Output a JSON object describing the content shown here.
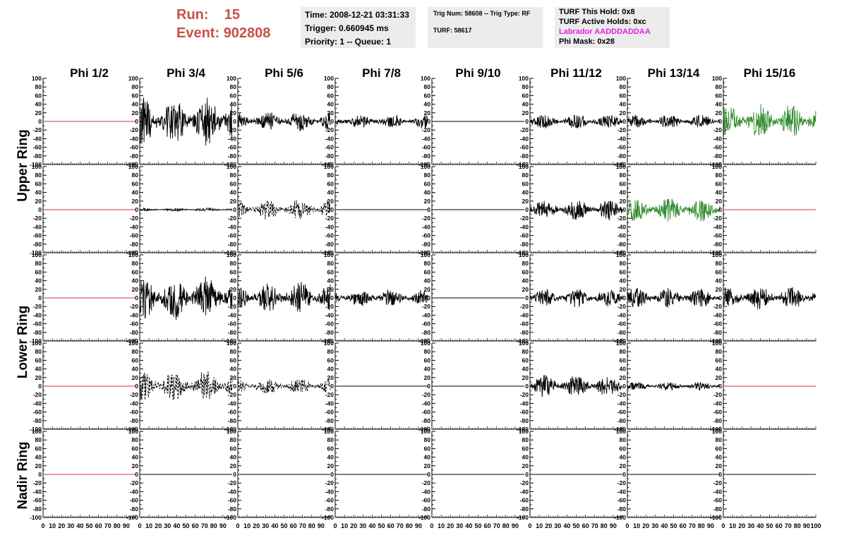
{
  "header": {
    "run_label": "Run:",
    "run_value": "15",
    "event_label": "Event:",
    "event_value": "902808",
    "time": "Time: 2008-12-21 03:31:33",
    "trigger": "Trigger: 0.660945 ms",
    "priority": "Priority: 1 -- Queue: 1",
    "trig_num": "Trig Num: 58608 -- Trig Type: RF",
    "turf": "TURF: 58617",
    "turf_hold": "TURF This Hold: 0x8",
    "turf_active": "TURF Active Holds: 0xc",
    "labrador": "Labrador AADDDADDAA",
    "phi_mask": "Phi Mask: 0x28",
    "run_color": "#c8504a",
    "labrador_color": "#e020e0"
  },
  "row_labels": [
    "Upper Ring",
    "Lower Ring",
    "Nadir Ring"
  ],
  "chart_data": {
    "type": "line",
    "columns": [
      "Phi 1/2",
      "Phi 3/4",
      "Phi 5/6",
      "Phi 7/8",
      "Phi 9/10",
      "Phi 11/12",
      "Phi 13/14",
      "Phi 15/16"
    ],
    "rows": 5,
    "ylim": [
      -100,
      100
    ],
    "xlim": [
      0,
      100
    ],
    "y_ticks": [
      100,
      80,
      60,
      40,
      20,
      0,
      -20,
      -40,
      -60,
      -80,
      -100
    ],
    "x_tick_labels": [
      "0",
      "10",
      "20",
      "30",
      "40",
      "50",
      "60",
      "70",
      "80",
      "90",
      "100"
    ],
    "colors": {
      "flat": "#cc3333",
      "normal": "#000000",
      "highlight": "#2e8b2e"
    },
    "panels": [
      [
        {
          "style": "flat"
        },
        {
          "style": "solid",
          "amp": 42,
          "color": "normal"
        },
        {
          "style": "solid",
          "amp": 18,
          "color": "normal"
        },
        {
          "style": "solid",
          "amp": 12,
          "color": "normal"
        },
        {
          "style": "zero"
        },
        {
          "style": "solid",
          "amp": 13,
          "color": "normal"
        },
        {
          "style": "solid",
          "amp": 12,
          "color": "normal"
        },
        {
          "style": "solid",
          "amp": 30,
          "color": "highlight"
        }
      ],
      [
        {
          "style": "flat"
        },
        {
          "style": "solid",
          "amp": 3,
          "color": "normal"
        },
        {
          "style": "dashed",
          "amp": 18,
          "color": "normal"
        },
        {
          "style": "zero"
        },
        {
          "style": "zero"
        },
        {
          "style": "solid",
          "amp": 18,
          "color": "normal"
        },
        {
          "style": "solid",
          "amp": 22,
          "color": "highlight"
        },
        {
          "style": "flat"
        }
      ],
      [
        {
          "style": "flat"
        },
        {
          "style": "solid",
          "amp": 38,
          "color": "normal"
        },
        {
          "style": "solid",
          "amp": 28,
          "color": "normal"
        },
        {
          "style": "solid",
          "amp": 15,
          "color": "normal"
        },
        {
          "style": "zero"
        },
        {
          "style": "solid",
          "amp": 16,
          "color": "normal"
        },
        {
          "style": "solid",
          "amp": 18,
          "color": "normal"
        },
        {
          "style": "solid",
          "amp": 20,
          "color": "normal"
        }
      ],
      [
        {
          "style": "flat"
        },
        {
          "style": "dashed",
          "amp": 28,
          "color": "normal"
        },
        {
          "style": "dashed",
          "amp": 14,
          "color": "normal"
        },
        {
          "style": "zero"
        },
        {
          "style": "zero"
        },
        {
          "style": "solid",
          "amp": 20,
          "color": "normal"
        },
        {
          "style": "solid",
          "amp": 8,
          "color": "normal"
        },
        {
          "style": "flat"
        }
      ],
      [
        {
          "style": "flat"
        },
        {
          "style": "zero"
        },
        {
          "style": "zero"
        },
        {
          "style": "zero"
        },
        {
          "style": "zero"
        },
        {
          "style": "zero"
        },
        {
          "style": "zero"
        },
        {
          "style": "zero"
        }
      ]
    ]
  }
}
